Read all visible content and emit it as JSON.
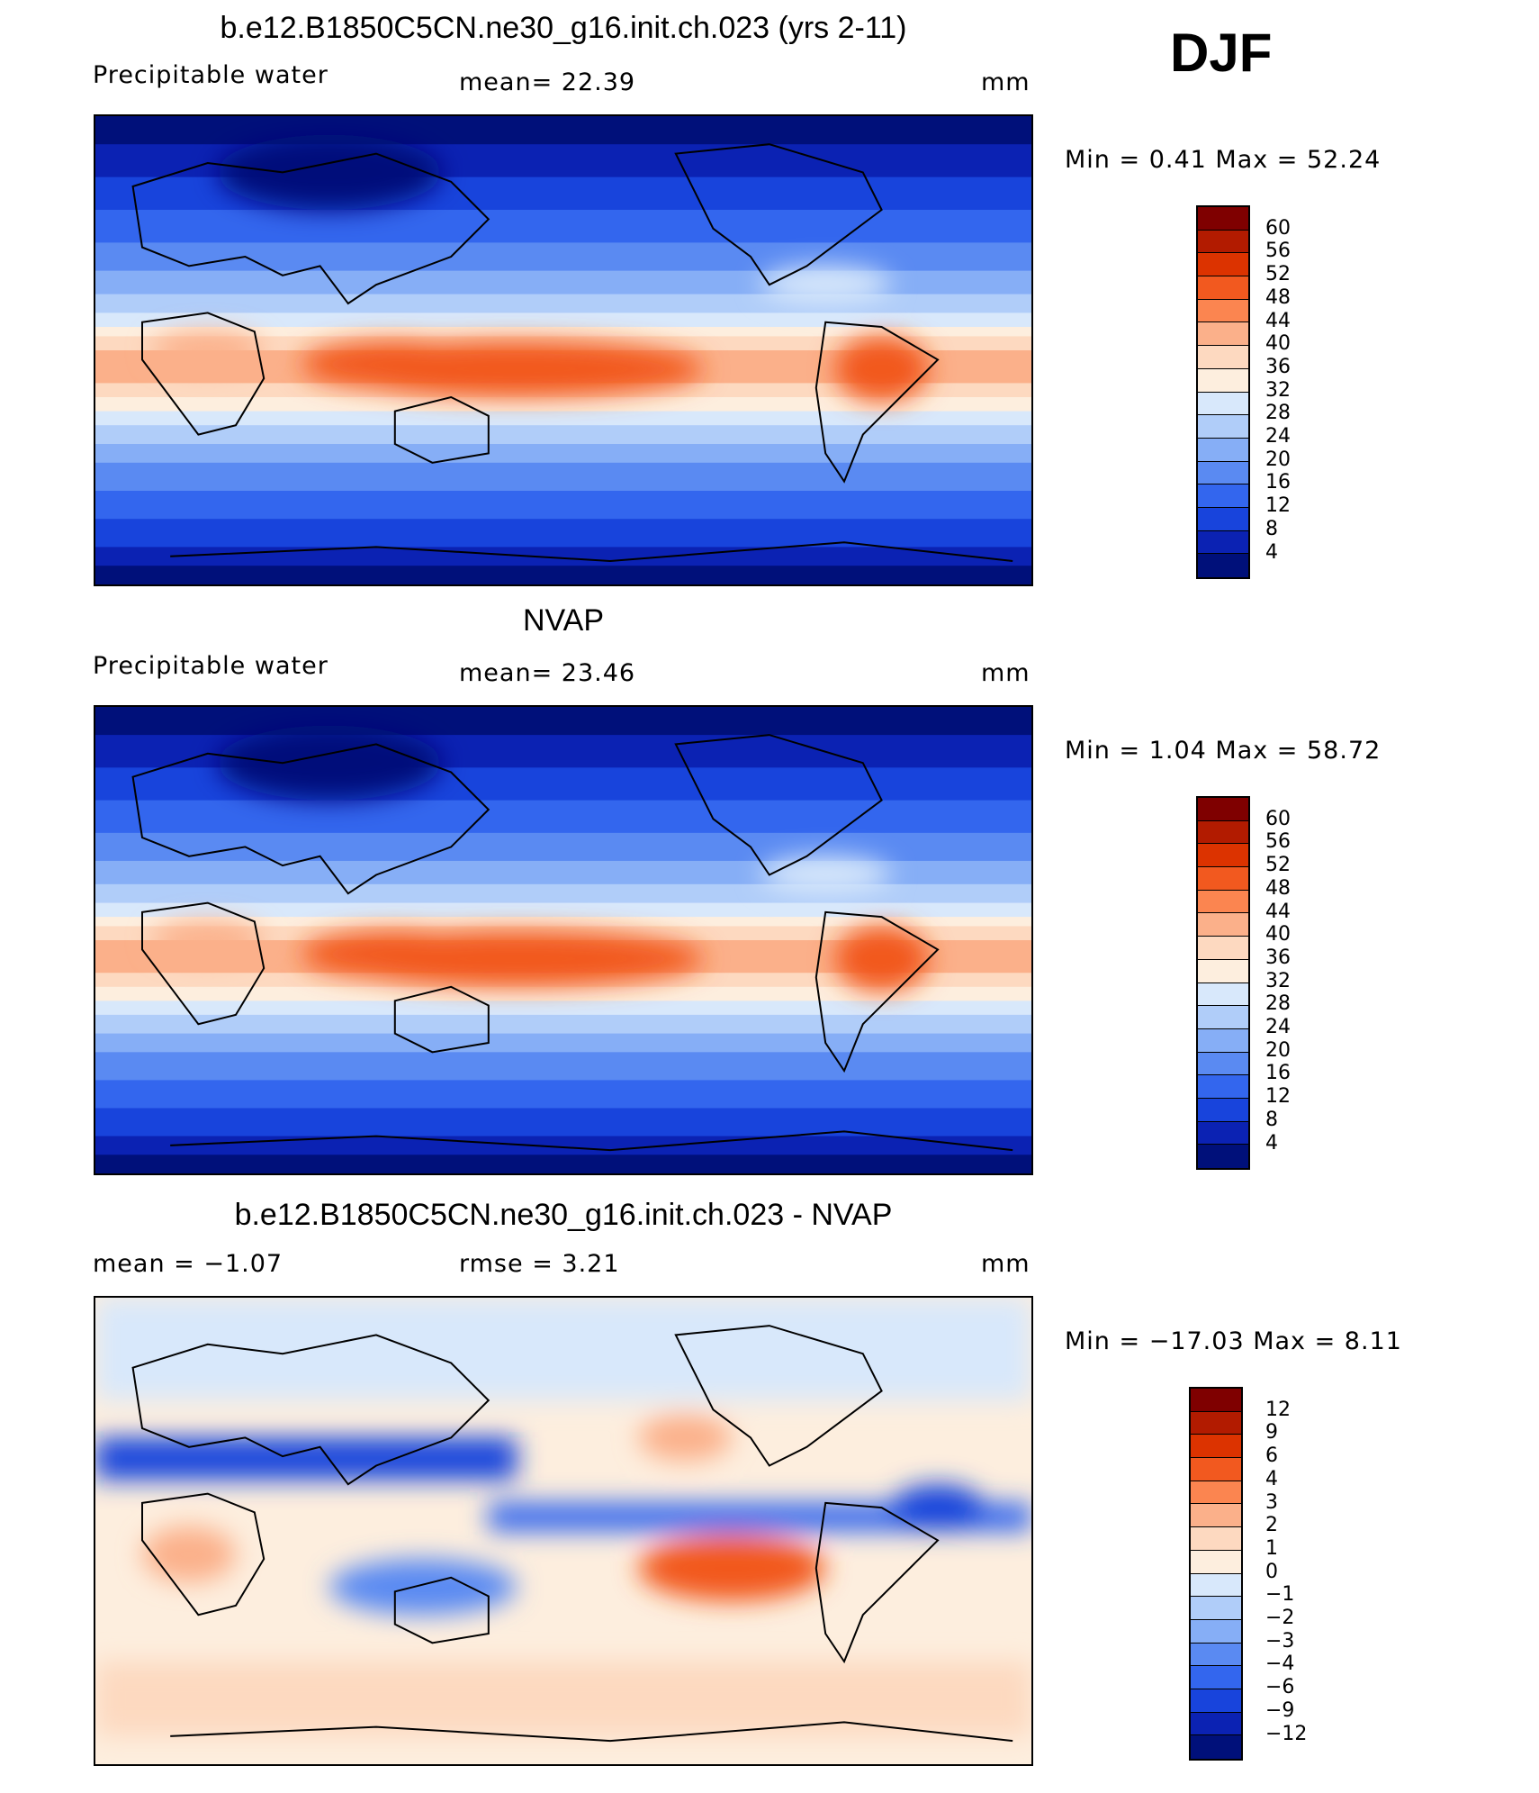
{
  "season": "DJF",
  "panels": [
    {
      "title": "b.e12.B1850C5CN.ne30_g16.init.ch.023 (yrs 2-11)",
      "left_label": "Precipitable  water",
      "center_label": "mean=   22.39",
      "units": "mm",
      "minmax": "Min  =     0.41  Max  =    52.24",
      "colorbar_labels": [
        "60",
        "56",
        "52",
        "48",
        "44",
        "40",
        "36",
        "32",
        "28",
        "24",
        "20",
        "16",
        "12",
        "8",
        "4"
      ],
      "colors": [
        "#7f0000",
        "#b21b00",
        "#dc3300",
        "#f2591f",
        "#fb8550",
        "#fbb08a",
        "#fdd9c0",
        "#fdeede",
        "#d8e8fb",
        "#b0cdf9",
        "#86aef6",
        "#5a8af2",
        "#3366ee",
        "#1844dc",
        "#0b22b3",
        "#00107a"
      ]
    },
    {
      "title": "NVAP",
      "left_label": "Precipitable  water",
      "center_label": "mean=   23.46",
      "units": "mm",
      "minmax": "Min  =     1.04  Max  =    58.72",
      "colorbar_labels": [
        "60",
        "56",
        "52",
        "48",
        "44",
        "40",
        "36",
        "32",
        "28",
        "24",
        "20",
        "16",
        "12",
        "8",
        "4"
      ],
      "colors": [
        "#7f0000",
        "#b21b00",
        "#dc3300",
        "#f2591f",
        "#fb8550",
        "#fbb08a",
        "#fdd9c0",
        "#fdeede",
        "#d8e8fb",
        "#b0cdf9",
        "#86aef6",
        "#5a8af2",
        "#3366ee",
        "#1844dc",
        "#0b22b3",
        "#00107a"
      ]
    },
    {
      "title": "b.e12.B1850C5CN.ne30_g16.init.ch.023 - NVAP",
      "left_label": "mean  =    −1.07",
      "center_label": "rmse  =     3.21",
      "units": "mm",
      "minmax": "Min  =  −17.03  Max  =     8.11",
      "colorbar_labels": [
        "12",
        "9",
        "6",
        "4",
        "3",
        "2",
        "1",
        "0",
        "−1",
        "−2",
        "−3",
        "−4",
        "−6",
        "−9",
        "−12"
      ],
      "colors": [
        "#7f0000",
        "#b21b00",
        "#dc3300",
        "#f2591f",
        "#fb8550",
        "#fbb08a",
        "#fdd9c0",
        "#fdeede",
        "#d8e8fb",
        "#b0cdf9",
        "#86aef6",
        "#5a8af2",
        "#3366ee",
        "#1844dc",
        "#0b22b3",
        "#00107a"
      ]
    }
  ]
}
